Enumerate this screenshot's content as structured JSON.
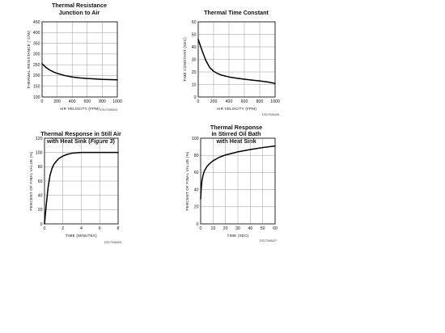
{
  "chart_data": [
    {
      "type": "line",
      "title_lines": [
        "Thermal Resistance",
        "Junction to Air"
      ],
      "xlabel": "AIR VELOCITY (FPM)",
      "ylabel": "THERMAL RESISTANCE (°C/W)",
      "xlim": [
        0,
        1000
      ],
      "ylim": [
        100,
        450
      ],
      "xticks": [
        "0",
        "200",
        "400",
        "600",
        "800",
        "1000"
      ],
      "yticks": [
        "100",
        "150",
        "200",
        "250",
        "300",
        "350",
        "400",
        "450"
      ],
      "grid": true,
      "code": "DS17045424",
      "series": [
        {
          "x": [
            0,
            50,
            100,
            150,
            200,
            300,
            400,
            500,
            600,
            700,
            800,
            900,
            1000
          ],
          "y": [
            255,
            238,
            226,
            217,
            210,
            200,
            193,
            189,
            186,
            184,
            182,
            181,
            180
          ]
        }
      ]
    },
    {
      "type": "line",
      "title_lines": [
        "Thermal Time Constant"
      ],
      "xlabel": "AIR VELOCITY (FPM)",
      "ylabel": "TIME CONSTANT (SEC)",
      "xlim": [
        0,
        1000
      ],
      "ylim": [
        0,
        60
      ],
      "xticks": [
        "0",
        "200",
        "400",
        "600",
        "800",
        "1000"
      ],
      "yticks": [
        "0",
        "10",
        "20",
        "30",
        "40",
        "50",
        "60"
      ],
      "grid": true,
      "code": "DS17045425",
      "series": [
        {
          "x": [
            0,
            50,
            100,
            150,
            200,
            250,
            300,
            400,
            500,
            600,
            700,
            800,
            900,
            1000
          ],
          "y": [
            46,
            37,
            29,
            23.5,
            20.5,
            18.8,
            17.5,
            16,
            15,
            14.2,
            13.5,
            12.8,
            12,
            10.8
          ]
        }
      ]
    },
    {
      "type": "line",
      "title_lines": [
        "Thermal Response in Still Air",
        "with Heat Sink (",
        "Figure 3",
        ")"
      ],
      "xlabel": "TIME (MINUTES)",
      "ylabel": "PERCENT OF FINAL VALUE (%)",
      "xlim": [
        0,
        8
      ],
      "ylim": [
        0,
        120
      ],
      "xticks": [
        "0",
        "2",
        "4",
        "6",
        "8"
      ],
      "yticks": [
        "0",
        "20",
        "40",
        "60",
        "80",
        "100",
        "120"
      ],
      "grid": true,
      "code": "DS17045426",
      "series": [
        {
          "x": [
            0,
            0.2,
            0.4,
            0.6,
            0.8,
            1.0,
            1.3,
            1.6,
            2.0,
            2.5,
            3.0,
            3.5,
            4.0,
            6.0,
            8.0
          ],
          "y": [
            0,
            28,
            52,
            68,
            77,
            83,
            88,
            92,
            95,
            97.5,
            99,
            99.6,
            100,
            100,
            100
          ]
        }
      ]
    },
    {
      "type": "line",
      "title_lines": [
        "Thermal Response",
        "in Stirred Oil Bath",
        "with Heat Sink"
      ],
      "xlabel": "TIME (SEC)",
      "ylabel": "PERCENT OF FINAL VALUE (%)",
      "xlim": [
        0,
        60
      ],
      "ylim": [
        0,
        110
      ],
      "xticks": [
        "0",
        "10",
        "20",
        "30",
        "40",
        "50",
        "60"
      ],
      "yticks": [
        "0",
        "20",
        "40",
        "60",
        "80",
        "100"
      ],
      "grid": true,
      "code": "DS17045427",
      "series": [
        {
          "x": [
            0,
            0.5,
            1,
            2,
            3,
            5,
            7,
            10,
            15,
            20,
            30,
            40,
            50,
            60
          ],
          "y": [
            32,
            46,
            55,
            63,
            68,
            73.5,
            77,
            81,
            85.5,
            88.5,
            92.5,
            95.5,
            98,
            100
          ]
        }
      ]
    }
  ]
}
